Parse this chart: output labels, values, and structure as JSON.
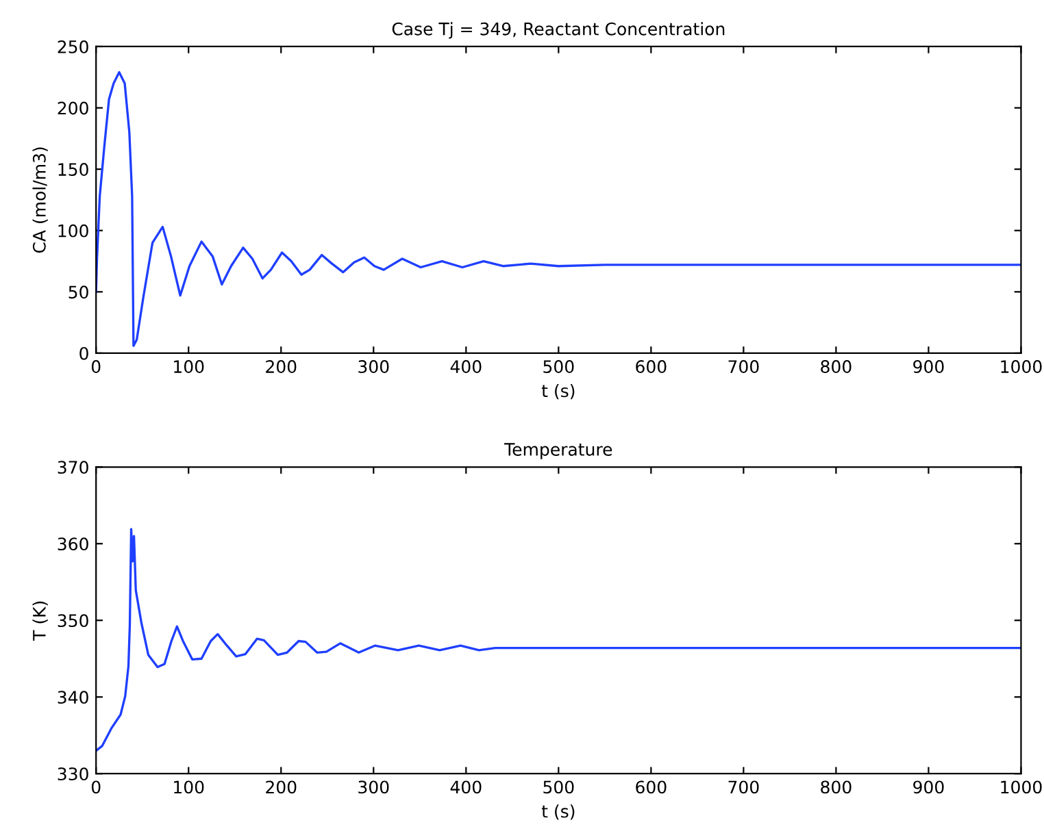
{
  "chart_data": [
    {
      "type": "line",
      "title": "Case Tj = 349, Reactant Concentration",
      "xlabel": "t (s)",
      "ylabel": "CA (mol/m3)",
      "xlim": [
        0,
        1000
      ],
      "ylim": [
        0,
        250
      ],
      "xticks": [
        0,
        100,
        200,
        300,
        400,
        500,
        600,
        700,
        800,
        900,
        1000
      ],
      "yticks": [
        0,
        50,
        100,
        150,
        200,
        250
      ],
      "grid": false,
      "legend": false,
      "series": [
        {
          "color": "#1f3fff",
          "x": [
            0,
            1,
            4,
            9,
            14,
            19,
            25,
            31,
            36,
            39,
            40.5,
            44,
            51,
            61,
            72,
            81,
            91,
            101,
            114,
            126,
            136,
            146,
            159,
            169,
            180,
            189,
            201,
            211,
            222,
            231,
            244,
            255,
            267,
            279,
            290,
            301,
            311,
            331,
            351,
            374,
            396,
            419,
            440,
            470,
            500,
            550,
            1000
          ],
          "values": [
            50,
            77,
            128,
            169,
            207,
            220,
            229,
            220,
            180,
            128,
            6,
            11,
            45,
            90,
            103,
            79,
            47,
            71,
            91,
            79,
            56,
            71,
            86,
            77,
            61,
            68,
            82,
            75,
            64,
            68,
            80,
            73,
            66,
            74,
            78,
            71,
            68,
            77,
            70,
            75,
            70,
            75,
            71,
            73,
            71,
            72,
            72
          ]
        }
      ]
    },
    {
      "type": "line",
      "title": "Temperature",
      "xlabel": "t (s)",
      "ylabel": "T (K)",
      "xlim": [
        0,
        1000
      ],
      "ylim": [
        330,
        370
      ],
      "xticks": [
        0,
        100,
        200,
        300,
        400,
        500,
        600,
        700,
        800,
        900,
        1000
      ],
      "yticks": [
        330,
        340,
        350,
        360,
        370
      ],
      "grid": false,
      "legend": false,
      "series": [
        {
          "color": "#1f3fff",
          "x": [
            0,
            6.5,
            16.5,
            26.5,
            31.5,
            35,
            36.5,
            38,
            39.5,
            41,
            43,
            49,
            56.5,
            66.5,
            74,
            81.5,
            87.5,
            94,
            104,
            114,
            124,
            131.5,
            141.5,
            151.5,
            161.5,
            174,
            181.5,
            196.5,
            206.5,
            219,
            226.5,
            239,
            249,
            264,
            284,
            301.5,
            326.5,
            349,
            371.5,
            394,
            414,
            431.5,
            1000
          ],
          "values": [
            333.0,
            333.6,
            335.9,
            337.7,
            340.1,
            344.0,
            349.4,
            361.9,
            357.7,
            361.0,
            353.9,
            349.7,
            345.5,
            343.9,
            344.3,
            347.3,
            349.2,
            347.3,
            344.9,
            345.0,
            347.3,
            348.2,
            346.7,
            345.3,
            345.6,
            347.6,
            347.4,
            345.5,
            345.8,
            347.3,
            347.2,
            345.8,
            345.9,
            347.0,
            345.8,
            346.7,
            346.1,
            346.7,
            346.1,
            346.7,
            346.1,
            346.4,
            346.4
          ]
        }
      ]
    }
  ]
}
